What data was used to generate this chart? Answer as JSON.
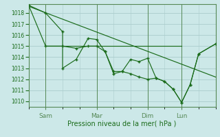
{
  "xlabel": "Pression niveau de la mer( hPa )",
  "bg_color": "#cce8e8",
  "grid_color": "#aacccc",
  "line_color": "#1a6b1a",
  "spine_color": "#558855",
  "ylim": [
    1009.5,
    1018.8
  ],
  "yticks": [
    1010,
    1011,
    1012,
    1013,
    1014,
    1015,
    1016,
    1017,
    1018
  ],
  "ytick_fontsize": 5.5,
  "xtick_fontsize": 6.5,
  "xlabel_fontsize": 7,
  "day_labels": [
    "Sam",
    "Mar",
    "Dim",
    "Lun"
  ],
  "day_positions": [
    1,
    4,
    7,
    9
  ],
  "xlim": [
    0,
    11
  ],
  "trend_x": [
    0,
    11
  ],
  "trend_y": [
    1018.6,
    1012.2
  ],
  "hline_x": [
    1,
    9
  ],
  "hline_y": 1015.0,
  "line1_x": [
    0,
    1,
    2,
    2,
    2.8,
    3.5,
    4,
    4.5,
    5,
    5.5,
    6,
    6.5,
    7,
    7.5,
    8,
    8.5,
    9,
    9.5,
    10,
    11
  ],
  "line1_y": [
    1018.7,
    1018.0,
    1016.3,
    1013.0,
    1013.8,
    1015.7,
    1015.6,
    1014.5,
    1012.7,
    1012.7,
    1013.8,
    1013.6,
    1013.9,
    1012.1,
    1011.8,
    1011.1,
    1009.9,
    1011.5,
    1014.3,
    1015.2
  ],
  "line2_x": [
    0,
    1,
    2,
    2.8,
    3.5,
    4,
    4.5,
    5,
    5.5,
    6,
    6.5,
    7,
    7.5,
    8,
    8.5,
    9,
    9.5,
    10,
    11
  ],
  "line2_y": [
    1018.7,
    1015.0,
    1015.0,
    1014.8,
    1015.0,
    1015.0,
    1014.5,
    1012.5,
    1012.7,
    1012.5,
    1012.2,
    1012.0,
    1012.1,
    1011.8,
    1011.1,
    1009.9,
    1011.5,
    1014.3,
    1015.2
  ]
}
